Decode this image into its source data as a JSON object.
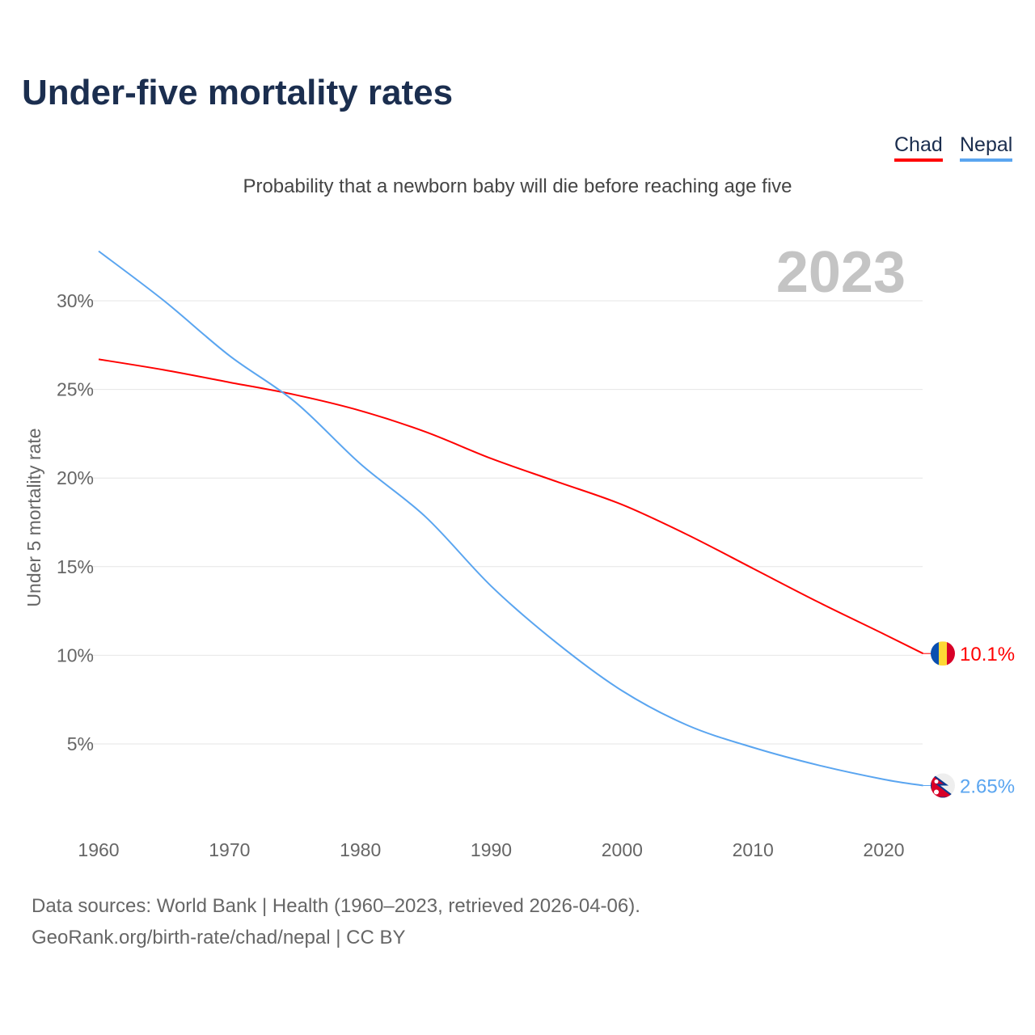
{
  "title": "Under-five mortality rates",
  "subtitle": "Probability that a newborn baby will die before reaching age five",
  "legend": [
    {
      "label": "Chad",
      "color": "#ff0000"
    },
    {
      "label": "Nepal",
      "color": "#5aa5f0"
    }
  ],
  "footer": {
    "line1": "Data sources: World Bank | Health (1960–2023, retrieved 2026-04-06).",
    "line2": "GeoRank.org/birth-rate/chad/nepal | CC BY"
  },
  "chart_data": {
    "type": "line",
    "title": "Under-five mortality rates",
    "ylabel": "Under 5 mortality rate",
    "xlabel": "",
    "year_label": "2023",
    "xlim": [
      1960,
      2023
    ],
    "ylim": [
      0,
      33
    ],
    "xticks": [
      "1960",
      "1970",
      "1980",
      "1990",
      "2000",
      "2010",
      "2020"
    ],
    "yticks": [
      "5%",
      "10%",
      "15%",
      "20%",
      "25%",
      "30%"
    ],
    "grid": true,
    "x": [
      1960,
      1965,
      1970,
      1975,
      1980,
      1985,
      1990,
      1995,
      2000,
      2005,
      2010,
      2015,
      2020,
      2023
    ],
    "series": [
      {
        "name": "Chad",
        "color": "#ff0000",
        "end_label": "10.1%",
        "values": [
          26.7,
          26.1,
          25.4,
          24.7,
          23.8,
          22.6,
          21.1,
          19.8,
          18.5,
          16.8,
          14.9,
          13.0,
          11.2,
          10.1
        ]
      },
      {
        "name": "Nepal",
        "color": "#5aa5f0",
        "end_label": "2.65%",
        "values": [
          32.8,
          30.0,
          26.9,
          24.3,
          20.8,
          17.8,
          13.9,
          10.7,
          8.0,
          6.05,
          4.8,
          3.8,
          3.0,
          2.65
        ]
      }
    ]
  }
}
